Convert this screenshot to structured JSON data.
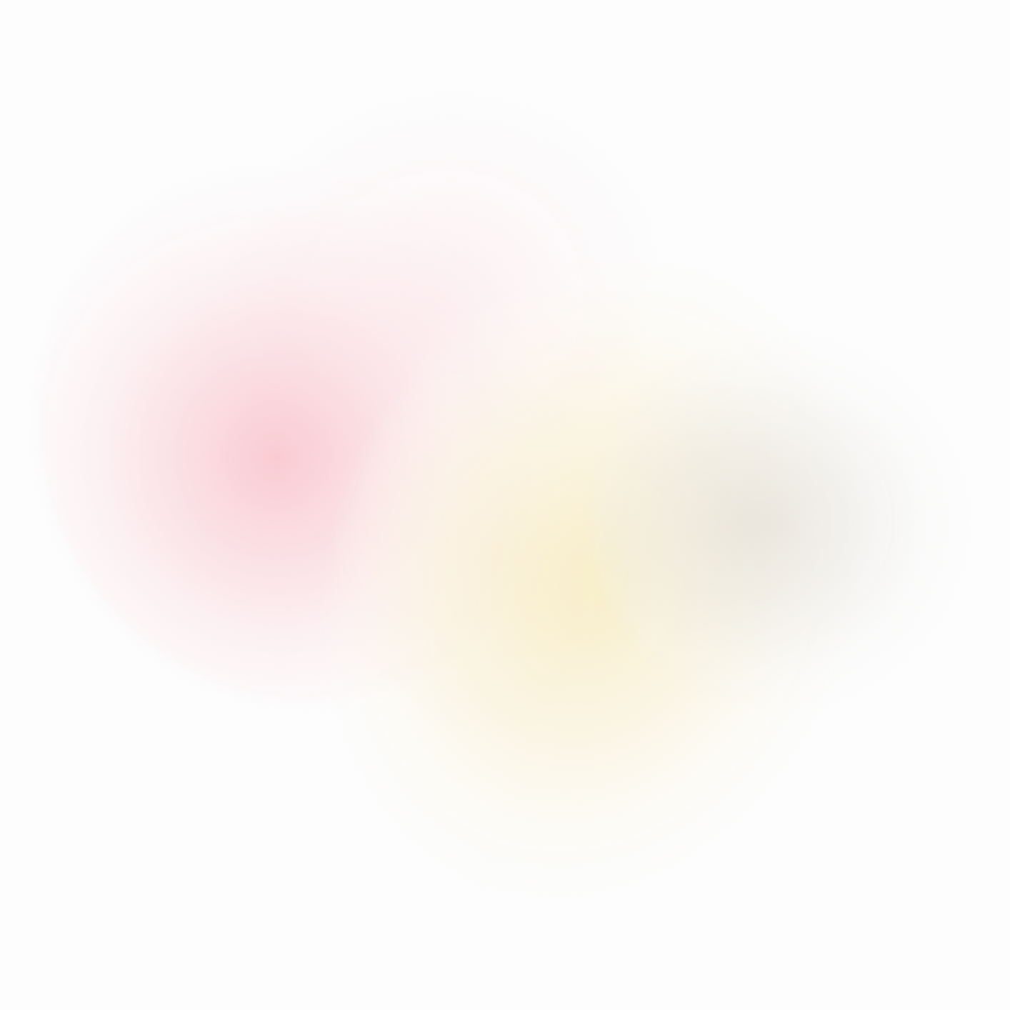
{
  "background": {
    "base_color": "#fdfdfd",
    "blobs": [
      {
        "name": "pink-glow",
        "color": "#f9c8d0"
      },
      {
        "name": "pink-halo",
        "color": "#fce4e8"
      },
      {
        "name": "yellow-glow",
        "color": "#f8eec8"
      },
      {
        "name": "grey-shade",
        "color": "#e2ded6"
      },
      {
        "name": "blend-zone",
        "color": "#fbece4"
      }
    ]
  }
}
